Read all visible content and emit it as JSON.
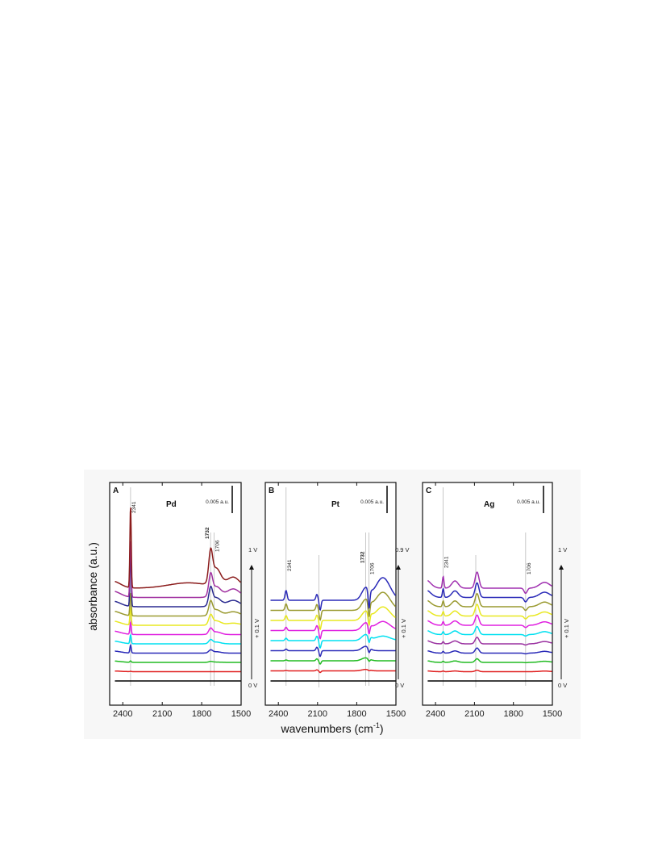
{
  "figure": {
    "ylabel": "absorbance (a.u.)",
    "xlabel": "wavenumbers (cm",
    "xlabel_sup": "-1",
    "xlabel_close": ")",
    "scale_bar_label": "0.005 a.u.",
    "voltage_step_label": "+ 0.1 V",
    "zero_voltage_label": "0 V"
  },
  "chart_data": [
    {
      "type": "line",
      "panel": "A",
      "metal": "Pd",
      "xlim": [
        2500,
        1500
      ],
      "x_ticks": [
        2400,
        2100,
        1800,
        1500
      ],
      "top_voltage_label": "1 V",
      "band_labels": [
        {
          "text": "2341",
          "x": 2341,
          "bold": false
        },
        {
          "text": "1732",
          "x": 1732,
          "bold": true
        },
        {
          "text": "1706",
          "x": 1706,
          "bold": false
        }
      ],
      "series_colors": [
        "#000000",
        "#e02020",
        "#22bb22",
        "#2a2ab8",
        "#00e0f0",
        "#e020e0",
        "#e8e820",
        "#9a9a30",
        "#2a2a90",
        "#a030a0",
        "#8b1c1c"
      ],
      "peak_heights": {
        "2341": [
          0,
          0.02,
          0.08,
          0.45,
          0.5,
          0.7,
          1.0,
          1.3,
          3.0,
          3.2,
          4.6
        ],
        "1732": [
          0,
          0.0,
          0.05,
          0.15,
          0.2,
          0.3,
          0.5,
          0.7,
          0.9,
          1.1,
          1.6
        ],
        "1706": [
          0,
          0.0,
          0.02,
          0.08,
          0.1,
          0.15,
          0.25,
          0.35,
          0.5,
          0.6,
          1.0
        ]
      }
    },
    {
      "type": "line",
      "panel": "B",
      "metal": "Pt",
      "xlim": [
        2500,
        1500
      ],
      "x_ticks": [
        2400,
        2100,
        1800,
        1500
      ],
      "top_voltage_label": "0.9 V",
      "band_labels": [
        {
          "text": "2341",
          "x": 2341,
          "bold": false
        },
        {
          "text": "1732",
          "x": 1732,
          "bold": true
        },
        {
          "text": "1706",
          "x": 1706,
          "bold": false
        }
      ],
      "series_colors": [
        "#000000",
        "#e02020",
        "#22bb22",
        "#2a2ab8",
        "#00e0f0",
        "#e020e0",
        "#e8e820",
        "#9a9a30",
        "#2a2ab8"
      ],
      "peak_heights": {
        "2341": [
          0,
          0.02,
          0.05,
          0.1,
          0.15,
          0.2,
          0.3,
          0.4,
          0.6
        ],
        "2090": [
          0,
          -0.1,
          -0.2,
          -0.35,
          -0.45,
          -0.5,
          -0.55,
          -0.6,
          -0.6
        ],
        "1706": [
          0,
          -0.05,
          -0.15,
          -0.3,
          -0.4,
          -0.6,
          -0.8,
          -1.0,
          -1.2
        ]
      }
    },
    {
      "type": "line",
      "panel": "C",
      "metal": "Ag",
      "xlim": [
        2500,
        1500
      ],
      "x_ticks": [
        2400,
        2100,
        1800,
        1500
      ],
      "top_voltage_label": "1 V",
      "band_labels": [
        {
          "text": "2341",
          "x": 2341,
          "bold": false
        },
        {
          "text": "1706",
          "x": 1706,
          "bold": false
        }
      ],
      "series_colors": [
        "#000000",
        "#e02020",
        "#22bb22",
        "#2a2ab8",
        "#9a30a0",
        "#00e0f0",
        "#e020e0",
        "#e8e820",
        "#9a9a30",
        "#2a2ab8",
        "#a030b0"
      ],
      "peak_heights": {
        "2341": [
          0,
          0.05,
          0.08,
          0.12,
          0.15,
          0.2,
          0.25,
          0.3,
          0.4,
          0.6,
          0.8
        ],
        "2090": [
          0,
          0.1,
          0.25,
          0.35,
          0.45,
          0.55,
          0.7,
          0.8,
          0.9,
          1.0,
          1.1
        ],
        "1706": [
          0,
          0.0,
          -0.02,
          -0.05,
          -0.08,
          -0.1,
          -0.15,
          -0.2,
          -0.25,
          -0.3,
          -0.35
        ]
      }
    }
  ]
}
